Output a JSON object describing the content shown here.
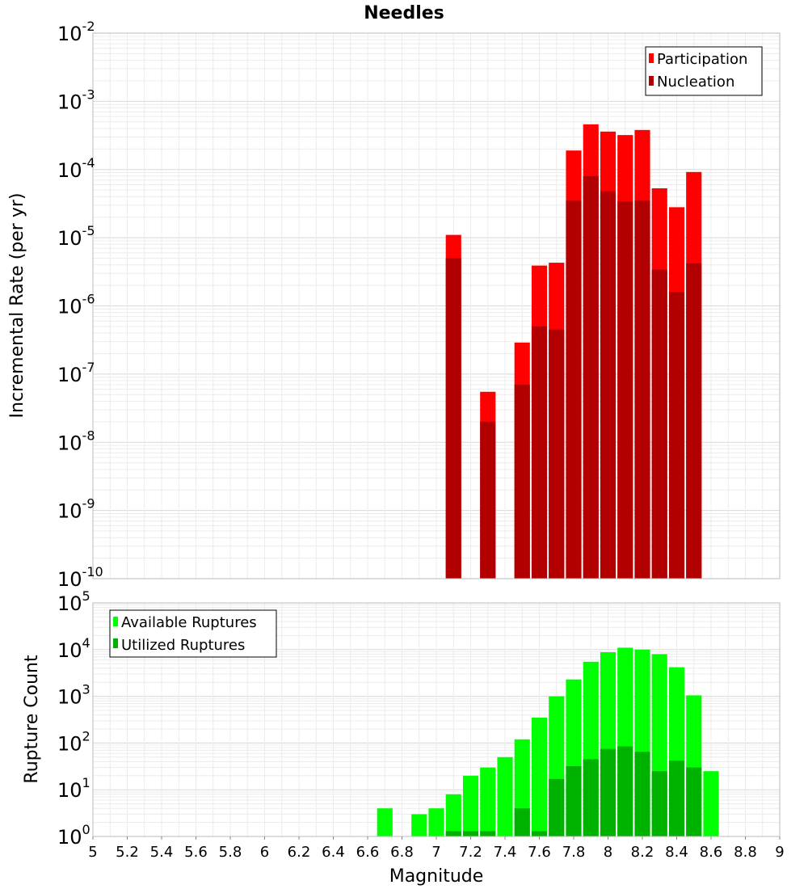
{
  "chart_data": [
    {
      "panel": "top",
      "type": "bar",
      "title": "Needles",
      "xlabel": "",
      "ylabel": "Incremental Rate (per yr)",
      "xlim": [
        5,
        9
      ],
      "ylim": [
        1e-10,
        0.01
      ],
      "yscale": "log",
      "y_tick_exponents": [
        -10,
        -9,
        -8,
        -7,
        -6,
        -5,
        -4,
        -3,
        -2
      ],
      "grid": true,
      "legend_position": "top-right",
      "categories": [
        7.1,
        7.3,
        7.5,
        7.6,
        7.7,
        7.8,
        7.9,
        8.0,
        8.1,
        8.2,
        8.3,
        8.4,
        8.5
      ],
      "series": [
        {
          "name": "Participation",
          "color": "#ff0000",
          "values": [
            1.1e-05,
            5.5e-08,
            2.9e-07,
            3.9e-06,
            4.3e-06,
            0.00019,
            0.00046,
            0.00036,
            0.00032,
            0.00038,
            5.3e-05,
            2.8e-05,
            9.2e-05
          ]
        },
        {
          "name": "Nucleation",
          "color": "#b20000",
          "values": [
            5e-06,
            2e-08,
            7e-08,
            5e-07,
            4.5e-07,
            3.5e-05,
            8e-05,
            4.8e-05,
            3.4e-05,
            3.5e-05,
            3.4e-06,
            1.6e-06,
            4.2e-06
          ]
        }
      ]
    },
    {
      "panel": "bottom",
      "type": "bar",
      "title": "",
      "xlabel": "Magnitude",
      "ylabel": "Rupture Count",
      "xlim": [
        5,
        9
      ],
      "ylim": [
        1,
        100000
      ],
      "yscale": "log",
      "y_tick_exponents": [
        0,
        1,
        2,
        3,
        4,
        5
      ],
      "x_ticks": [
        "5",
        "5.2",
        "5.4",
        "5.6",
        "5.8",
        "6",
        "6.2",
        "6.4",
        "6.6",
        "6.8",
        "7",
        "7.2",
        "7.4",
        "7.6",
        "7.8",
        "8",
        "8.2",
        "8.4",
        "8.6",
        "8.8",
        "9"
      ],
      "grid": true,
      "legend_position": "top-left",
      "categories": [
        6.7,
        6.9,
        7.0,
        7.1,
        7.2,
        7.3,
        7.4,
        7.5,
        7.6,
        7.7,
        7.8,
        7.9,
        8.0,
        8.1,
        8.2,
        8.3,
        8.4,
        8.5,
        8.6
      ],
      "series": [
        {
          "name": "Available Ruptures",
          "color": "#00ff00",
          "values": [
            4,
            3,
            4,
            8,
            20,
            30,
            50,
            120,
            350,
            1000,
            2300,
            5500,
            8800,
            11000,
            10000,
            8000,
            4200,
            1050,
            25
          ]
        },
        {
          "name": "Utilized Ruptures",
          "color": "#00b200",
          "values": [
            0,
            0,
            0,
            1.3,
            1.3,
            1.3,
            0,
            4,
            1.3,
            17,
            32,
            45,
            75,
            85,
            65,
            25,
            42,
            30,
            0
          ]
        }
      ]
    }
  ]
}
